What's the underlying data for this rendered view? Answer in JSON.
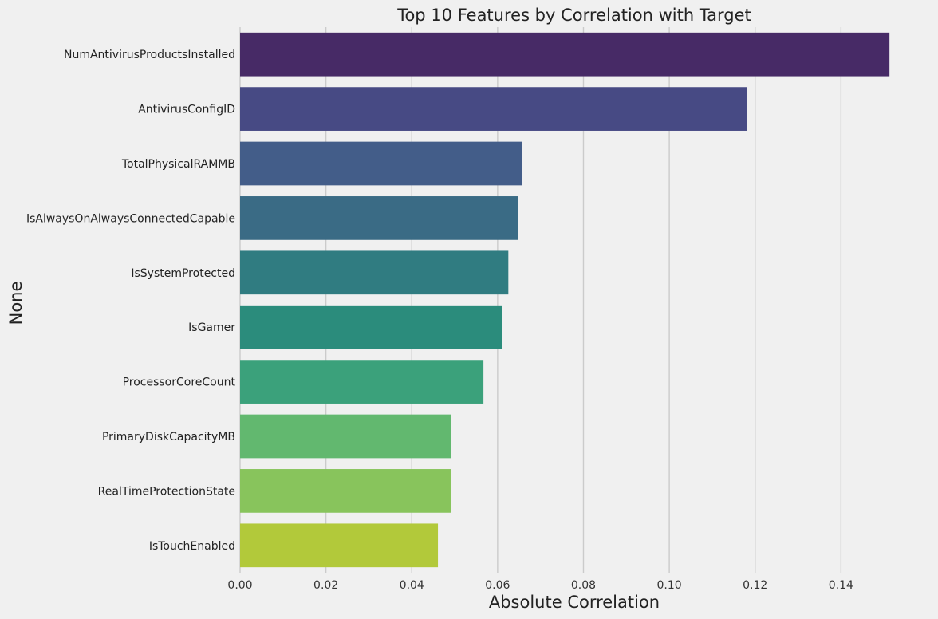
{
  "chart_data": {
    "type": "bar",
    "orientation": "horizontal",
    "title": "Top 10 Features by Correlation with Target",
    "xlabel": "Absolute Correlation",
    "ylabel": "None",
    "xlim": [
      0,
      0.1535
    ],
    "xticks": [
      0.0,
      0.02,
      0.04,
      0.06,
      0.08,
      0.1,
      0.12,
      0.14
    ],
    "xtick_labels": [
      "0.00",
      "0.02",
      "0.04",
      "0.06",
      "0.08",
      "0.10",
      "0.12",
      "0.14"
    ],
    "grid": true,
    "categories": [
      "NumAntivirusProductsInstalled",
      "AntivirusConfigID",
      "TotalPhysicalRAMMB",
      "IsAlwaysOnAlwaysConnectedCapable",
      "IsSystemProtected",
      "IsGamer",
      "ProcessorCoreCount",
      "PrimaryDiskCapacityMB",
      "RealTimeProtectionState",
      "IsTouchEnabled"
    ],
    "values": [
      0.1513,
      0.1181,
      0.0657,
      0.0648,
      0.0625,
      0.0611,
      0.0567,
      0.0491,
      0.0491,
      0.0461
    ],
    "colors": [
      "#472a66",
      "#474a84",
      "#435d89",
      "#3a6b85",
      "#307c81",
      "#2b8c7c",
      "#3ba17b",
      "#62b86f",
      "#88c45c",
      "#b2c93a"
    ]
  }
}
